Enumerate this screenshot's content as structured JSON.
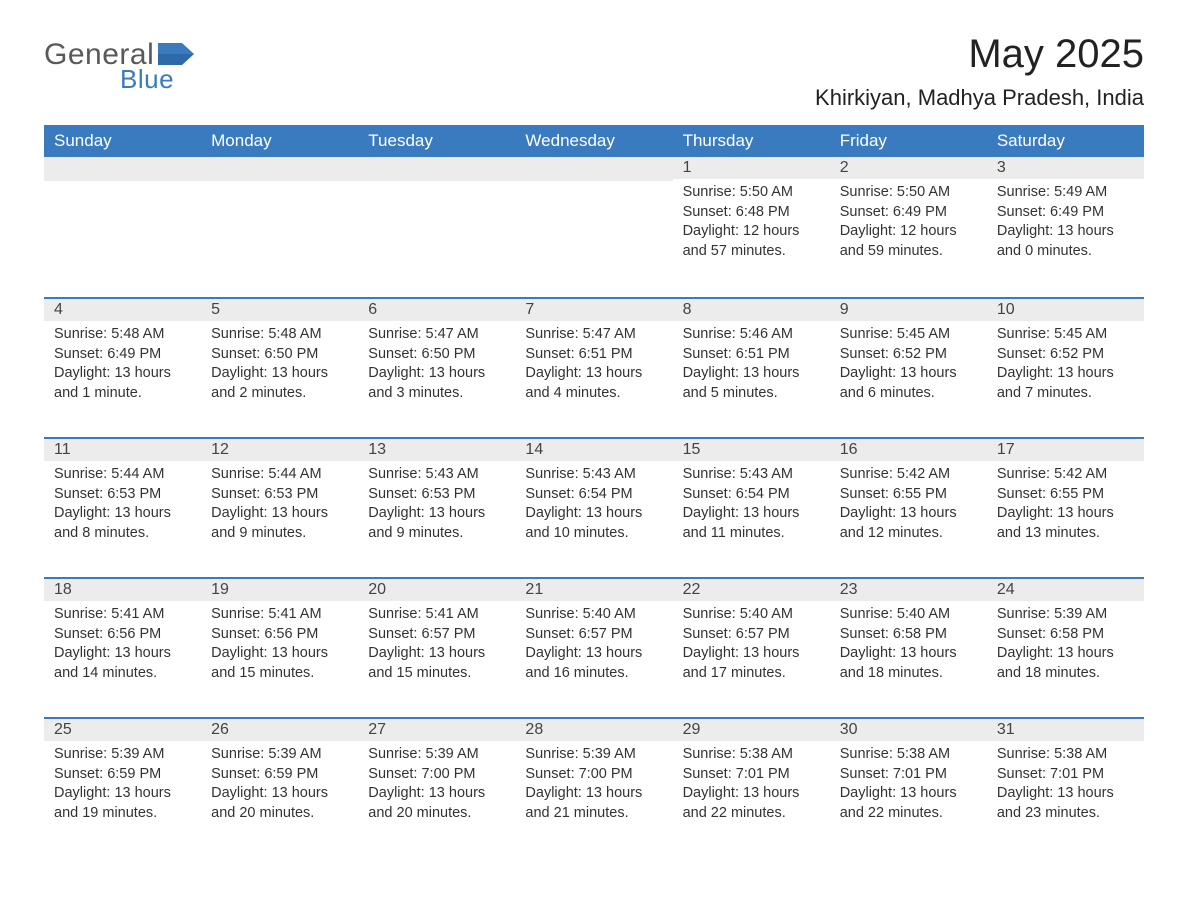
{
  "brand": {
    "word1": "General",
    "word2": "Blue",
    "shape_color": "#3a7bbf",
    "word1_color": "#58595b",
    "word2_color": "#3a7bbf"
  },
  "title": "May 2025",
  "location": "Khirkiyan, Madhya Pradesh, India",
  "colors": {
    "header_bg": "#3a7bbf",
    "header_text": "#ffffff",
    "daynum_bg": "#ececec",
    "border": "#3a7bbf",
    "page_bg": "#ffffff",
    "text": "#333333"
  },
  "weekdays": [
    "Sunday",
    "Monday",
    "Tuesday",
    "Wednesday",
    "Thursday",
    "Friday",
    "Saturday"
  ],
  "weeks": [
    [
      {
        "empty": true
      },
      {
        "empty": true
      },
      {
        "empty": true
      },
      {
        "empty": true
      },
      {
        "num": "1",
        "sunrise": "Sunrise: 5:50 AM",
        "sunset": "Sunset: 6:48 PM",
        "day1": "Daylight: 12 hours",
        "day2": "and 57 minutes."
      },
      {
        "num": "2",
        "sunrise": "Sunrise: 5:50 AM",
        "sunset": "Sunset: 6:49 PM",
        "day1": "Daylight: 12 hours",
        "day2": "and 59 minutes."
      },
      {
        "num": "3",
        "sunrise": "Sunrise: 5:49 AM",
        "sunset": "Sunset: 6:49 PM",
        "day1": "Daylight: 13 hours",
        "day2": "and 0 minutes."
      }
    ],
    [
      {
        "num": "4",
        "sunrise": "Sunrise: 5:48 AM",
        "sunset": "Sunset: 6:49 PM",
        "day1": "Daylight: 13 hours",
        "day2": "and 1 minute."
      },
      {
        "num": "5",
        "sunrise": "Sunrise: 5:48 AM",
        "sunset": "Sunset: 6:50 PM",
        "day1": "Daylight: 13 hours",
        "day2": "and 2 minutes."
      },
      {
        "num": "6",
        "sunrise": "Sunrise: 5:47 AM",
        "sunset": "Sunset: 6:50 PM",
        "day1": "Daylight: 13 hours",
        "day2": "and 3 minutes."
      },
      {
        "num": "7",
        "sunrise": "Sunrise: 5:47 AM",
        "sunset": "Sunset: 6:51 PM",
        "day1": "Daylight: 13 hours",
        "day2": "and 4 minutes."
      },
      {
        "num": "8",
        "sunrise": "Sunrise: 5:46 AM",
        "sunset": "Sunset: 6:51 PM",
        "day1": "Daylight: 13 hours",
        "day2": "and 5 minutes."
      },
      {
        "num": "9",
        "sunrise": "Sunrise: 5:45 AM",
        "sunset": "Sunset: 6:52 PM",
        "day1": "Daylight: 13 hours",
        "day2": "and 6 minutes."
      },
      {
        "num": "10",
        "sunrise": "Sunrise: 5:45 AM",
        "sunset": "Sunset: 6:52 PM",
        "day1": "Daylight: 13 hours",
        "day2": "and 7 minutes."
      }
    ],
    [
      {
        "num": "11",
        "sunrise": "Sunrise: 5:44 AM",
        "sunset": "Sunset: 6:53 PM",
        "day1": "Daylight: 13 hours",
        "day2": "and 8 minutes."
      },
      {
        "num": "12",
        "sunrise": "Sunrise: 5:44 AM",
        "sunset": "Sunset: 6:53 PM",
        "day1": "Daylight: 13 hours",
        "day2": "and 9 minutes."
      },
      {
        "num": "13",
        "sunrise": "Sunrise: 5:43 AM",
        "sunset": "Sunset: 6:53 PM",
        "day1": "Daylight: 13 hours",
        "day2": "and 9 minutes."
      },
      {
        "num": "14",
        "sunrise": "Sunrise: 5:43 AM",
        "sunset": "Sunset: 6:54 PM",
        "day1": "Daylight: 13 hours",
        "day2": "and 10 minutes."
      },
      {
        "num": "15",
        "sunrise": "Sunrise: 5:43 AM",
        "sunset": "Sunset: 6:54 PM",
        "day1": "Daylight: 13 hours",
        "day2": "and 11 minutes."
      },
      {
        "num": "16",
        "sunrise": "Sunrise: 5:42 AM",
        "sunset": "Sunset: 6:55 PM",
        "day1": "Daylight: 13 hours",
        "day2": "and 12 minutes."
      },
      {
        "num": "17",
        "sunrise": "Sunrise: 5:42 AM",
        "sunset": "Sunset: 6:55 PM",
        "day1": "Daylight: 13 hours",
        "day2": "and 13 minutes."
      }
    ],
    [
      {
        "num": "18",
        "sunrise": "Sunrise: 5:41 AM",
        "sunset": "Sunset: 6:56 PM",
        "day1": "Daylight: 13 hours",
        "day2": "and 14 minutes."
      },
      {
        "num": "19",
        "sunrise": "Sunrise: 5:41 AM",
        "sunset": "Sunset: 6:56 PM",
        "day1": "Daylight: 13 hours",
        "day2": "and 15 minutes."
      },
      {
        "num": "20",
        "sunrise": "Sunrise: 5:41 AM",
        "sunset": "Sunset: 6:57 PM",
        "day1": "Daylight: 13 hours",
        "day2": "and 15 minutes."
      },
      {
        "num": "21",
        "sunrise": "Sunrise: 5:40 AM",
        "sunset": "Sunset: 6:57 PM",
        "day1": "Daylight: 13 hours",
        "day2": "and 16 minutes."
      },
      {
        "num": "22",
        "sunrise": "Sunrise: 5:40 AM",
        "sunset": "Sunset: 6:57 PM",
        "day1": "Daylight: 13 hours",
        "day2": "and 17 minutes."
      },
      {
        "num": "23",
        "sunrise": "Sunrise: 5:40 AM",
        "sunset": "Sunset: 6:58 PM",
        "day1": "Daylight: 13 hours",
        "day2": "and 18 minutes."
      },
      {
        "num": "24",
        "sunrise": "Sunrise: 5:39 AM",
        "sunset": "Sunset: 6:58 PM",
        "day1": "Daylight: 13 hours",
        "day2": "and 18 minutes."
      }
    ],
    [
      {
        "num": "25",
        "sunrise": "Sunrise: 5:39 AM",
        "sunset": "Sunset: 6:59 PM",
        "day1": "Daylight: 13 hours",
        "day2": "and 19 minutes."
      },
      {
        "num": "26",
        "sunrise": "Sunrise: 5:39 AM",
        "sunset": "Sunset: 6:59 PM",
        "day1": "Daylight: 13 hours",
        "day2": "and 20 minutes."
      },
      {
        "num": "27",
        "sunrise": "Sunrise: 5:39 AM",
        "sunset": "Sunset: 7:00 PM",
        "day1": "Daylight: 13 hours",
        "day2": "and 20 minutes."
      },
      {
        "num": "28",
        "sunrise": "Sunrise: 5:39 AM",
        "sunset": "Sunset: 7:00 PM",
        "day1": "Daylight: 13 hours",
        "day2": "and 21 minutes."
      },
      {
        "num": "29",
        "sunrise": "Sunrise: 5:38 AM",
        "sunset": "Sunset: 7:01 PM",
        "day1": "Daylight: 13 hours",
        "day2": "and 22 minutes."
      },
      {
        "num": "30",
        "sunrise": "Sunrise: 5:38 AM",
        "sunset": "Sunset: 7:01 PM",
        "day1": "Daylight: 13 hours",
        "day2": "and 22 minutes."
      },
      {
        "num": "31",
        "sunrise": "Sunrise: 5:38 AM",
        "sunset": "Sunset: 7:01 PM",
        "day1": "Daylight: 13 hours",
        "day2": "and 23 minutes."
      }
    ]
  ]
}
